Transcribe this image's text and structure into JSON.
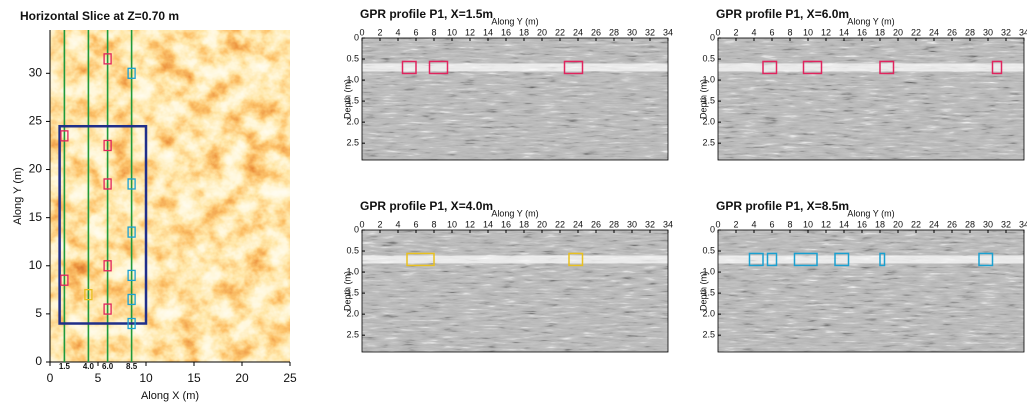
{
  "chart_data": [
    {
      "type": "heatmap",
      "title": "Horizontal Slice at Z=0.70 m",
      "x_label": "Along X (m)",
      "y_label": "Along Y (m)",
      "xlim": [
        0,
        25
      ],
      "ylim": [
        0,
        34.5
      ],
      "xticks": [
        0,
        5,
        10,
        15,
        20,
        25
      ],
      "yticks": [
        0,
        5,
        10,
        15,
        20,
        25,
        30
      ],
      "profiles": [
        {
          "value": 1.5,
          "label": "1.5"
        },
        {
          "value": 4,
          "label": "4.0"
        },
        {
          "value": 6,
          "label": "6.0"
        },
        {
          "value": 8.5,
          "label": "8.5"
        }
      ],
      "profile_color": "#1e9a3c",
      "area": {
        "x": [
          1,
          10
        ],
        "y": [
          4,
          24.5
        ],
        "color": "#1f2f8a"
      },
      "targets": [
        {
          "x": 1.5,
          "y": 23.5,
          "color": "#e0245e"
        },
        {
          "x": 1.5,
          "y": 8.5,
          "color": "#e0245e"
        },
        {
          "x": 6,
          "y": 31.5,
          "color": "#e0245e"
        },
        {
          "x": 6,
          "y": 22.5,
          "color": "#e0245e"
        },
        {
          "x": 6,
          "y": 18.5,
          "color": "#e0245e"
        },
        {
          "x": 6,
          "y": 10,
          "color": "#e0245e"
        },
        {
          "x": 6,
          "y": 5.5,
          "color": "#e0245e"
        },
        {
          "x": 4,
          "y": 7,
          "color": "#e8c020"
        },
        {
          "x": 8.5,
          "y": 30,
          "color": "#1aa0d0"
        },
        {
          "x": 8.5,
          "y": 18.5,
          "color": "#1aa0d0"
        },
        {
          "x": 8.5,
          "y": 13.5,
          "color": "#1aa0d0"
        },
        {
          "x": 8.5,
          "y": 9,
          "color": "#1aa0d0"
        },
        {
          "x": 8.5,
          "y": 6.5,
          "color": "#1aa0d0"
        },
        {
          "x": 8.5,
          "y": 4,
          "color": "#1aa0d0"
        }
      ]
    },
    {
      "type": "radargram",
      "title": "GPR profile P1, X=1.5m",
      "x_label": "Along Y (m)",
      "y_label": "Depth (m)",
      "xlim": [
        0,
        34
      ],
      "ylim": [
        0,
        2.9
      ],
      "xticks": [
        0,
        2,
        4,
        6,
        8,
        10,
        12,
        14,
        16,
        18,
        20,
        22,
        24,
        26,
        28,
        30,
        32,
        34
      ],
      "yticks": [
        0,
        0.5,
        {
          "value": 1,
          "label": "1.0"
        },
        1.5,
        {
          "value": 2,
          "label": "2.0"
        },
        2.5
      ],
      "slice_depth": 0.7,
      "targets": [
        {
          "x": [
            4.5,
            6
          ],
          "color": "#e0245e"
        },
        {
          "x": [
            7.5,
            9.5
          ],
          "color": "#e0245e"
        },
        {
          "x": [
            22.5,
            24.5
          ],
          "color": "#e0245e"
        }
      ]
    },
    {
      "type": "radargram",
      "title": "GPR profile P1, X=6.0m",
      "x_label": "Along Y (m)",
      "y_label": "Depth (m)",
      "xlim": [
        0,
        34
      ],
      "ylim": [
        0,
        2.9
      ],
      "xticks": [
        0,
        2,
        4,
        6,
        8,
        10,
        12,
        14,
        16,
        18,
        20,
        22,
        24,
        26,
        28,
        30,
        32,
        34
      ],
      "yticks": [
        0,
        0.5,
        {
          "value": 1,
          "label": "1.0"
        },
        1.5,
        {
          "value": 2,
          "label": "2.0"
        },
        2.5
      ],
      "slice_depth": 0.7,
      "targets": [
        {
          "x": [
            5,
            6.5
          ],
          "color": "#e0245e"
        },
        {
          "x": [
            9.5,
            11.5
          ],
          "color": "#e0245e"
        },
        {
          "x": [
            18,
            19.5
          ],
          "color": "#e0245e"
        },
        {
          "x": [
            30.5,
            31.5
          ],
          "color": "#e0245e"
        }
      ]
    },
    {
      "type": "radargram",
      "title": "GPR profile P1, X=4.0m",
      "x_label": "Along Y (m)",
      "y_label": "Depth (m)",
      "xlim": [
        0,
        34
      ],
      "ylim": [
        0,
        2.9
      ],
      "xticks": [
        0,
        2,
        4,
        6,
        8,
        10,
        12,
        14,
        16,
        18,
        20,
        22,
        24,
        26,
        28,
        30,
        32,
        34
      ],
      "yticks": [
        0,
        0.5,
        {
          "value": 1,
          "label": "1.0"
        },
        1.5,
        {
          "value": 2,
          "label": "2.0"
        },
        2.5
      ],
      "slice_depth": 0.7,
      "targets": [
        {
          "x": [
            5,
            8
          ],
          "color": "#e8c020"
        },
        {
          "x": [
            23,
            24.5
          ],
          "color": "#e8c020"
        }
      ]
    },
    {
      "type": "radargram",
      "title": "GPR profile P1, X=8.5m",
      "x_label": "Along Y (m)",
      "y_label": "Depth (m)",
      "xlim": [
        0,
        34
      ],
      "ylim": [
        0,
        2.9
      ],
      "xticks": [
        0,
        2,
        4,
        6,
        8,
        10,
        12,
        14,
        16,
        18,
        20,
        22,
        24,
        26,
        28,
        30,
        32,
        34
      ],
      "yticks": [
        0,
        0.5,
        {
          "value": 1,
          "label": "1.0"
        },
        1.5,
        {
          "value": 2,
          "label": "2.0"
        },
        2.5
      ],
      "slice_depth": 0.7,
      "targets": [
        {
          "x": [
            3.5,
            5
          ],
          "color": "#1aa0d0"
        },
        {
          "x": [
            5.5,
            6.5
          ],
          "color": "#1aa0d0"
        },
        {
          "x": [
            8.5,
            11
          ],
          "color": "#1aa0d0"
        },
        {
          "x": [
            13,
            14.5
          ],
          "color": "#1aa0d0"
        },
        {
          "x": [
            18,
            18.5
          ],
          "color": "#1aa0d0"
        },
        {
          "x": [
            29,
            30.5
          ],
          "color": "#1aa0d0"
        }
      ]
    }
  ]
}
